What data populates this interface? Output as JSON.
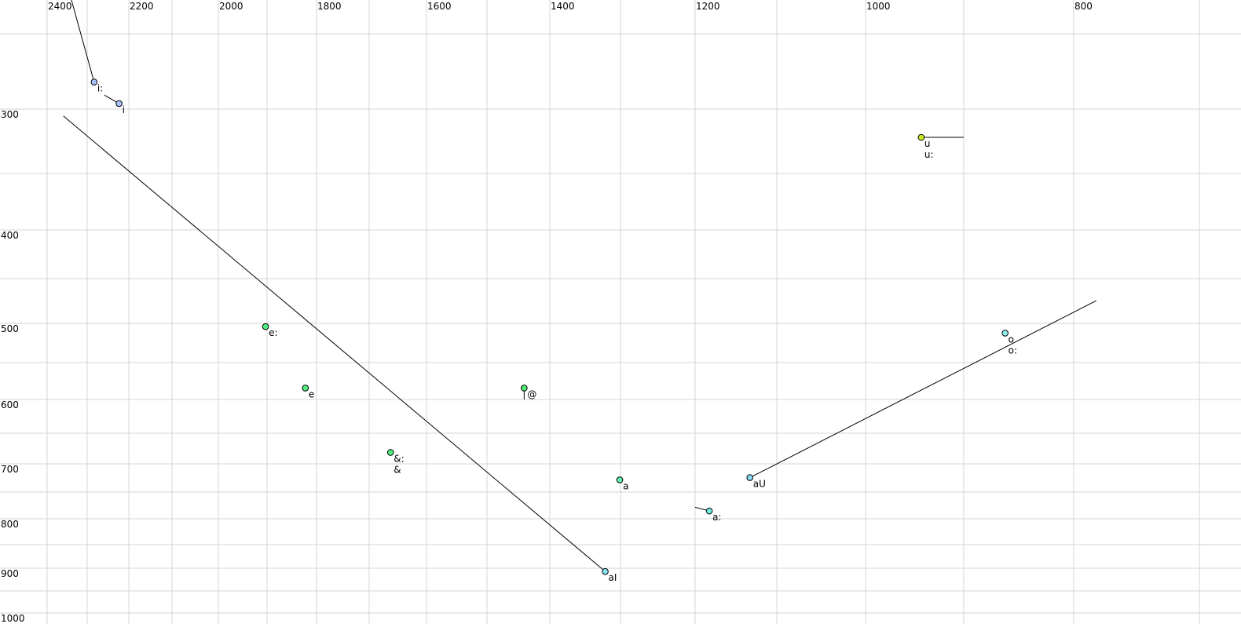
{
  "chart_data": {
    "type": "scatter",
    "title": "",
    "xlabel": "",
    "ylabel": "",
    "x_axis": {
      "reversed": true,
      "scale": "log",
      "range": [
        2400,
        700
      ],
      "tick_labels": [
        "2400",
        "2200",
        "2000",
        "1800",
        "1600",
        "1400",
        "1200",
        "1000",
        "800"
      ],
      "gridlines_every": 100
    },
    "y_axis": {
      "reversed": false,
      "scale": "log",
      "range": [
        250,
        1000
      ],
      "tick_labels": [
        "300",
        "400",
        "500",
        "600",
        "700",
        "800",
        "900",
        "1000"
      ],
      "gridlines_every": 50
    },
    "grid": true,
    "points": [
      {
        "label": "i:",
        "F2": 2283,
        "F1": 281,
        "color": "#a8c4ff"
      },
      {
        "label": "i",
        "F2": 2223,
        "F1": 296,
        "color": "#a8c4ff"
      },
      {
        "label": "u",
        "F2": 942,
        "F1": 321,
        "color": "#c8ec20"
      },
      {
        "label": "u:",
        "F2": 942,
        "F1": 321,
        "color": "#c8ec20"
      },
      {
        "label": "e:",
        "F2": 1903,
        "F1": 504,
        "color": "#50ee80"
      },
      {
        "label": "e",
        "F2": 1822,
        "F1": 584,
        "color": "#50ee80"
      },
      {
        "label": "&:",
        "F2": 1662,
        "F1": 681,
        "color": "#50ee80"
      },
      {
        "label": "&",
        "F2": 1662,
        "F1": 681,
        "color": "#50ee80"
      },
      {
        "label": "@",
        "F2": 1440,
        "F1": 584,
        "color": "#50ee70"
      },
      {
        "label": "a",
        "F2": 1301,
        "F1": 728,
        "color": "#60f0b0"
      },
      {
        "label": "a:",
        "F2": 1182,
        "F1": 785,
        "color": "#70eee0"
      },
      {
        "label": "aU",
        "F2": 1132,
        "F1": 724,
        "color": "#88d8f4"
      },
      {
        "label": "aI",
        "F2": 1321,
        "F1": 907,
        "color": "#88e4f0"
      },
      {
        "label": "o",
        "F2": 861,
        "F1": 512,
        "color": "#90f0f0"
      },
      {
        "label": "o:",
        "F2": 861,
        "F1": 512,
        "color": "#90f0f0"
      }
    ],
    "trajectories": [
      {
        "of": "i:",
        "from": [
          2339,
          239
        ],
        "to": [
          2283,
          281
        ]
      },
      {
        "of": "i",
        "from": [
          2258,
          290
        ],
        "to": [
          2223,
          296
        ]
      },
      {
        "of": "aI",
        "from": [
          2359,
          305
        ],
        "to": [
          1321,
          907
        ]
      },
      {
        "of": "u",
        "from": [
          942,
          321
        ],
        "to": [
          900,
          321
        ]
      },
      {
        "of": "aU",
        "from": [
          1132,
          724
        ],
        "to": [
          781,
          474
        ]
      },
      {
        "of": "a:",
        "from": [
          1200,
          778
        ],
        "to": [
          1182,
          785
        ]
      },
      {
        "of": "@",
        "from": [
          1440,
          584
        ],
        "to": [
          1440,
          600
        ]
      }
    ]
  }
}
